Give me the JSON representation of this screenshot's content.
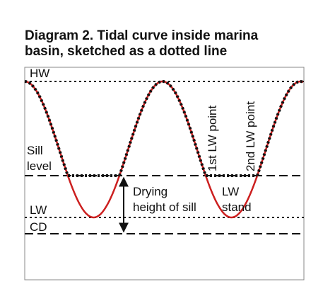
{
  "header": {
    "title": [
      "Diagram 2. Tidal curve inside marina",
      "basin, sketched as a dotted line"
    ]
  },
  "levels": {
    "hw": "HW",
    "sill": [
      "Sill",
      "level"
    ],
    "lw": "LW",
    "cd": "CD"
  },
  "annotations": {
    "drying": [
      "Drying",
      "height of sill"
    ],
    "lw_stand": [
      "LW",
      "stand"
    ],
    "first_lw_point": "1st LW point",
    "second_lw_point": "2nd LW point"
  }
}
